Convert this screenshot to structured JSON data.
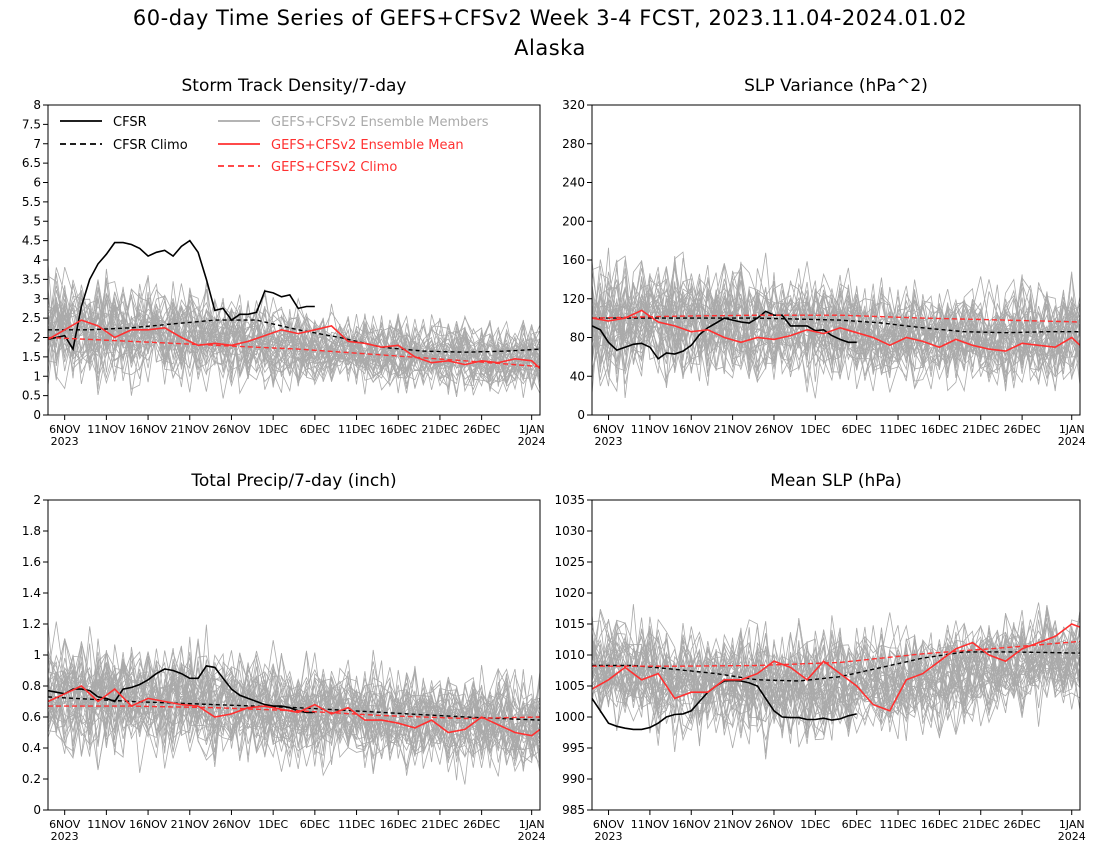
{
  "header": {
    "title": "60-day Time Series of GEFS+CFSv2 Week 3-4 FCST, 2023.11.04-2024.01.02",
    "subtitle": "Alaska"
  },
  "legend": [
    {
      "label": "CFSR",
      "color": "#000000",
      "dash": false
    },
    {
      "label": "CFSR Climo",
      "color": "#000000",
      "dash": true
    },
    {
      "label": "GEFS+CFSv2 Ensemble Members",
      "color": "#aaaaaa",
      "dash": false
    },
    {
      "label": "GEFS+CFSv2 Ensemble Mean",
      "color": "#ff3030",
      "dash": false
    },
    {
      "label": "GEFS+CFSv2 Climo",
      "color": "#ff3030",
      "dash": true
    }
  ],
  "colors": {
    "cfsr": "#000000",
    "members": "#aaaaaa",
    "mean": "#ff3030"
  },
  "chart_data": [
    {
      "type": "line",
      "title": "Storm Track Density/7-day",
      "ylim": [
        0,
        8
      ],
      "yticks": [
        "0",
        "0.5",
        "1",
        "1.5",
        "2",
        "2.5",
        "3",
        "3.5",
        "4",
        "4.5",
        "5",
        "5.5",
        "6",
        "6.5",
        "7",
        "7.5",
        "8"
      ],
      "xticks": [
        "6NOV",
        "11NOV",
        "16NOV",
        "21NOV",
        "26NOV",
        "1DEC",
        "6DEC",
        "11DEC",
        "16DEC",
        "21DEC",
        "26DEC",
        "1JAN"
      ],
      "xtick_years": {
        "6NOV": "2023",
        "1JAN": "2024"
      },
      "members_band": {
        "center": [
          2.2,
          2.0,
          1.6,
          1.5
        ],
        "spread": [
          1.6,
          1.3,
          1.0,
          1.0
        ],
        "count": 40
      },
      "series": [
        {
          "name": "CFSR",
          "x": [
            0,
            1,
            2,
            3,
            4,
            5,
            6,
            7,
            8,
            9,
            10,
            11,
            12,
            13,
            14,
            15,
            16,
            17,
            18,
            19,
            20,
            21,
            22,
            23,
            24,
            25,
            26,
            27,
            28,
            29,
            30,
            31,
            32
          ],
          "values": [
            1.95,
            2.0,
            2.05,
            1.7,
            2.8,
            3.5,
            3.9,
            4.15,
            4.45,
            4.45,
            4.4,
            4.3,
            4.1,
            4.2,
            4.25,
            4.1,
            4.35,
            4.5,
            4.2,
            3.5,
            2.7,
            2.75,
            2.45,
            2.6,
            2.6,
            2.65,
            3.2,
            3.15,
            3.05,
            3.1,
            2.75,
            2.8,
            2.8
          ]
        },
        {
          "name": "CFSR Climo",
          "x": [
            0,
            5,
            10,
            15,
            20,
            25,
            30,
            35,
            40,
            45,
            50,
            55,
            59
          ],
          "values": [
            2.2,
            2.2,
            2.25,
            2.35,
            2.45,
            2.45,
            2.2,
            2.0,
            1.75,
            1.65,
            1.62,
            1.65,
            1.7
          ]
        },
        {
          "name": "GEFS+CFSv2 Ensemble Mean",
          "x": [
            0,
            2,
            4,
            6,
            8,
            10,
            12,
            14,
            16,
            18,
            20,
            22,
            24,
            26,
            28,
            30,
            32,
            34,
            36,
            38,
            40,
            42,
            44,
            46,
            48,
            50,
            52,
            54,
            56,
            58,
            59
          ],
          "values": [
            1.95,
            2.2,
            2.45,
            2.3,
            2.0,
            2.2,
            2.2,
            2.25,
            2.0,
            1.8,
            1.85,
            1.8,
            1.9,
            2.05,
            2.2,
            2.1,
            2.2,
            2.3,
            1.9,
            1.85,
            1.75,
            1.8,
            1.5,
            1.35,
            1.4,
            1.3,
            1.4,
            1.35,
            1.45,
            1.4,
            1.2
          ]
        },
        {
          "name": "GEFS+CFSv2 Climo",
          "x": [
            0,
            10,
            20,
            30,
            40,
            50,
            59
          ],
          "values": [
            2.0,
            1.9,
            1.8,
            1.7,
            1.55,
            1.4,
            1.25
          ]
        }
      ]
    },
    {
      "type": "line",
      "title": "SLP Variance (hPa^2)",
      "ylim": [
        0,
        320
      ],
      "yticks": [
        "0",
        "40",
        "80",
        "120",
        "160",
        "200",
        "240",
        "280",
        "320"
      ],
      "xticks": [
        "6NOV",
        "11NOV",
        "16NOV",
        "21NOV",
        "26NOV",
        "1DEC",
        "6DEC",
        "11DEC",
        "16DEC",
        "21DEC",
        "26DEC",
        "1JAN"
      ],
      "xtick_years": {
        "6NOV": "2023",
        "1JAN": "2024"
      },
      "members_band": {
        "center": [
          100,
          95,
          80,
          80
        ],
        "spread": [
          75,
          65,
          55,
          60
        ],
        "count": 40
      },
      "series": [
        {
          "name": "CFSR",
          "x": [
            0,
            1,
            2,
            3,
            4,
            5,
            6,
            7,
            8,
            9,
            10,
            11,
            12,
            13,
            14,
            15,
            16,
            17,
            18,
            19,
            20,
            21,
            22,
            23,
            24,
            25,
            26,
            27,
            28,
            29,
            30,
            31,
            32
          ],
          "values": [
            92,
            88,
            75,
            67,
            70,
            73,
            74,
            70,
            58,
            64,
            63,
            66,
            72,
            83,
            90,
            95,
            100,
            98,
            96,
            95,
            100,
            107,
            103,
            103,
            92,
            92,
            92,
            87,
            88,
            82,
            78,
            75,
            75
          ]
        },
        {
          "name": "CFSR Climo",
          "x": [
            0,
            10,
            20,
            25,
            30,
            35,
            40,
            45,
            50,
            55,
            59
          ],
          "values": [
            100,
            100,
            100,
            99,
            98,
            95,
            90,
            86,
            85,
            86,
            86
          ]
        },
        {
          "name": "GEFS+CFSv2 Ensemble Mean",
          "x": [
            0,
            2,
            4,
            6,
            8,
            10,
            12,
            14,
            16,
            18,
            20,
            22,
            24,
            26,
            28,
            30,
            32,
            34,
            36,
            38,
            40,
            42,
            44,
            46,
            48,
            50,
            52,
            54,
            56,
            58,
            59
          ],
          "values": [
            100,
            97,
            100,
            108,
            96,
            92,
            86,
            88,
            80,
            75,
            80,
            78,
            82,
            88,
            84,
            90,
            85,
            80,
            72,
            80,
            76,
            70,
            78,
            72,
            68,
            66,
            74,
            72,
            70,
            80,
            72
          ]
        },
        {
          "name": "GEFS+CFSv2 Climo",
          "x": [
            0,
            10,
            20,
            30,
            40,
            50,
            59
          ],
          "values": [
            100,
            102,
            103,
            103,
            100,
            98,
            96
          ]
        }
      ]
    },
    {
      "type": "line",
      "title": "Total Precip/7-day (inch)",
      "ylim": [
        0,
        2
      ],
      "yticks": [
        "0",
        "0.2",
        "0.4",
        "0.6",
        "0.8",
        "1",
        "1.2",
        "1.4",
        "1.6",
        "1.8",
        "2"
      ],
      "xticks": [
        "6NOV",
        "11NOV",
        "16NOV",
        "21NOV",
        "26NOV",
        "1DEC",
        "6DEC",
        "11DEC",
        "16DEC",
        "21DEC",
        "26DEC",
        "1JAN"
      ],
      "xtick_years": {
        "6NOV": "2023",
        "1JAN": "2024"
      },
      "members_band": {
        "center": [
          0.75,
          0.7,
          0.6,
          0.55
        ],
        "spread": [
          0.45,
          0.4,
          0.35,
          0.35
        ],
        "count": 40
      },
      "series": [
        {
          "name": "CFSR",
          "x": [
            0,
            1,
            2,
            3,
            4,
            5,
            6,
            7,
            8,
            9,
            10,
            11,
            12,
            13,
            14,
            15,
            16,
            17,
            18,
            19,
            20,
            21,
            22,
            23,
            24,
            25,
            26,
            27,
            28,
            29,
            30,
            31,
            32
          ],
          "values": [
            0.77,
            0.76,
            0.75,
            0.78,
            0.78,
            0.77,
            0.73,
            0.72,
            0.7,
            0.78,
            0.79,
            0.81,
            0.84,
            0.88,
            0.91,
            0.9,
            0.88,
            0.85,
            0.85,
            0.93,
            0.92,
            0.85,
            0.78,
            0.74,
            0.72,
            0.7,
            0.68,
            0.67,
            0.67,
            0.66,
            0.64,
            0.63,
            0.63
          ]
        },
        {
          "name": "CFSR Climo",
          "x": [
            0,
            10,
            20,
            30,
            40,
            50,
            59
          ],
          "values": [
            0.73,
            0.7,
            0.68,
            0.66,
            0.63,
            0.6,
            0.58
          ]
        },
        {
          "name": "GEFS+CFSv2 Ensemble Mean",
          "x": [
            0,
            2,
            4,
            6,
            8,
            10,
            12,
            14,
            16,
            18,
            20,
            22,
            24,
            26,
            28,
            30,
            32,
            34,
            36,
            38,
            40,
            42,
            44,
            46,
            48,
            50,
            52,
            54,
            56,
            58,
            59
          ],
          "values": [
            0.7,
            0.75,
            0.8,
            0.7,
            0.78,
            0.67,
            0.72,
            0.7,
            0.68,
            0.67,
            0.6,
            0.62,
            0.66,
            0.67,
            0.65,
            0.63,
            0.68,
            0.62,
            0.66,
            0.58,
            0.58,
            0.56,
            0.53,
            0.58,
            0.5,
            0.52,
            0.6,
            0.55,
            0.5,
            0.48,
            0.52
          ]
        },
        {
          "name": "GEFS+CFSv2 Climo",
          "x": [
            0,
            10,
            20,
            30,
            40,
            50,
            59
          ],
          "values": [
            0.67,
            0.67,
            0.66,
            0.64,
            0.61,
            0.59,
            0.6
          ]
        }
      ]
    },
    {
      "type": "line",
      "title": "Mean SLP (hPa)",
      "ylim": [
        985,
        1035
      ],
      "yticks": [
        "985",
        "990",
        "995",
        "1000",
        "1005",
        "1010",
        "1015",
        "1020",
        "1025",
        "1030",
        "1035"
      ],
      "xticks": [
        "6NOV",
        "11NOV",
        "16NOV",
        "21NOV",
        "26NOV",
        "1DEC",
        "6DEC",
        "11DEC",
        "16DEC",
        "21DEC",
        "26DEC",
        "1JAN"
      ],
      "xtick_years": {
        "6NOV": "2023",
        "1JAN": "2024"
      },
      "members_band": {
        "center": [
          1008,
          1005,
          1006,
          1010
        ],
        "spread": [
          10,
          10,
          9,
          9
        ],
        "count": 40
      },
      "series": [
        {
          "name": "CFSR",
          "x": [
            0,
            1,
            2,
            3,
            4,
            5,
            6,
            7,
            8,
            9,
            10,
            11,
            12,
            13,
            14,
            15,
            16,
            17,
            18,
            19,
            20,
            21,
            22,
            23,
            24,
            25,
            26,
            27,
            28,
            29,
            30,
            31,
            32
          ],
          "values": [
            1003,
            1001,
            999,
            998.5,
            998.2,
            998,
            998,
            998.3,
            999,
            1000,
            1000.4,
            1000.5,
            1001,
            1002.5,
            1004,
            1005,
            1005.8,
            1005.9,
            1005.8,
            1005.5,
            1005,
            1003,
            1001,
            1000,
            999.9,
            999.9,
            999.6,
            999.6,
            999.8,
            999.5,
            999.7,
            1000.2,
            1000.5
          ]
        },
        {
          "name": "CFSR Climo",
          "x": [
            0,
            5,
            10,
            15,
            20,
            25,
            30,
            35,
            40,
            45,
            50,
            55,
            59
          ],
          "values": [
            1008.3,
            1008.3,
            1007.7,
            1007,
            1006,
            1005.8,
            1006.5,
            1008,
            1009.5,
            1010.5,
            1010.5,
            1010.4,
            1010.3
          ]
        },
        {
          "name": "GEFS+CFSv2 Ensemble Mean",
          "x": [
            0,
            2,
            4,
            6,
            8,
            10,
            12,
            14,
            16,
            18,
            20,
            22,
            24,
            26,
            28,
            30,
            32,
            34,
            36,
            38,
            40,
            42,
            44,
            46,
            48,
            50,
            52,
            54,
            56,
            58,
            59
          ],
          "values": [
            1004.5,
            1006,
            1008,
            1006,
            1007,
            1003,
            1004,
            1004,
            1006,
            1006,
            1007,
            1009,
            1008,
            1006,
            1009,
            1007,
            1005,
            1002,
            1001,
            1006,
            1007,
            1009,
            1011,
            1012,
            1010,
            1009,
            1011,
            1012,
            1013,
            1015,
            1014.5
          ]
        },
        {
          "name": "GEFS+CFSv2 Climo",
          "x": [
            0,
            10,
            20,
            30,
            40,
            50,
            59
          ],
          "values": [
            1008.2,
            1008.2,
            1008.3,
            1008.8,
            1010.2,
            1011.2,
            1012.2
          ]
        }
      ]
    }
  ]
}
